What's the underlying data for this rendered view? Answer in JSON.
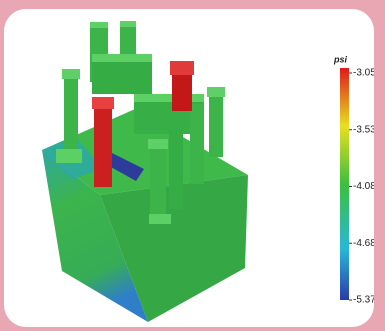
{
  "colorbar": {
    "title": "psi",
    "ticks": [
      "-3.050",
      "-3.536",
      "-4.080",
      "-4.689",
      "-5.371"
    ]
  }
}
